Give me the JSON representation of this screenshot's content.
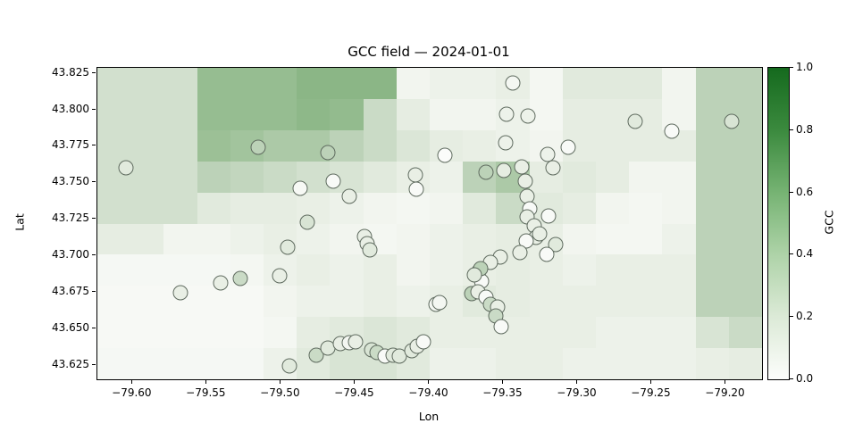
{
  "figure": {
    "title": "GCC field — 2024-01-01",
    "xlabel": "Lon",
    "ylabel": "Lat",
    "colorbar_label": "GCC",
    "background": "#ffffff"
  },
  "chart_data": {
    "type": "heatmap",
    "title": "GCC field — 2024-01-01",
    "xlabel": "Lon",
    "ylabel": "Lat",
    "xlim": [
      -79.6237,
      -79.1756
    ],
    "ylim": [
      43.6151,
      43.8285
    ],
    "grid_on": false,
    "x_ticks": [
      {
        "v": -79.6,
        "label": "−79.60"
      },
      {
        "v": -79.55,
        "label": "−79.55"
      },
      {
        "v": -79.5,
        "label": "−79.50"
      },
      {
        "v": -79.45,
        "label": "−79.45"
      },
      {
        "v": -79.4,
        "label": "−79.40"
      },
      {
        "v": -79.35,
        "label": "−79.35"
      },
      {
        "v": -79.3,
        "label": "−79.30"
      },
      {
        "v": -79.25,
        "label": "−79.25"
      },
      {
        "v": -79.2,
        "label": "−79.20"
      }
    ],
    "y_ticks": [
      {
        "v": 43.825,
        "label": "43.825"
      },
      {
        "v": 43.8,
        "label": "43.800"
      },
      {
        "v": 43.775,
        "label": "43.775"
      },
      {
        "v": 43.75,
        "label": "43.750"
      },
      {
        "v": 43.725,
        "label": "43.725"
      },
      {
        "v": 43.7,
        "label": "43.700"
      },
      {
        "v": 43.675,
        "label": "43.675"
      },
      {
        "v": 43.65,
        "label": "43.650"
      },
      {
        "v": 43.625,
        "label": "43.625"
      }
    ],
    "colorbar": {
      "label": "GCC",
      "vmin": 0.0,
      "vmax": 1.0,
      "ticks": [
        {
          "v": 0.0,
          "label": "0.0"
        },
        {
          "v": 0.2,
          "label": "0.2"
        },
        {
          "v": 0.4,
          "label": "0.4"
        },
        {
          "v": 0.6,
          "label": "0.6"
        },
        {
          "v": 0.8,
          "label": "0.8"
        },
        {
          "v": 1.0,
          "label": "1.0"
        }
      ],
      "cmap_name": "Greens",
      "gradient_stops": [
        [
          0.0,
          "#fcfdfb"
        ],
        [
          0.2,
          "#dcead7"
        ],
        [
          0.4,
          "#aed3a8"
        ],
        [
          0.6,
          "#76b373"
        ],
        [
          0.8,
          "#3b8a3e"
        ],
        [
          1.0,
          "#156a1e"
        ]
      ]
    },
    "heatmap": {
      "nx": 20,
      "ny": 10,
      "cmap_stops": [
        [
          0.0,
          "#fbfcfa"
        ],
        [
          0.05,
          "#f4f7f2"
        ],
        [
          0.1,
          "#e9efe5"
        ],
        [
          0.2,
          "#d8e4d4"
        ],
        [
          0.3,
          "#bcd2b8"
        ],
        [
          0.4,
          "#9cc096"
        ],
        [
          0.5,
          "#7fb07c"
        ],
        [
          0.75,
          "#3d8549"
        ],
        [
          1.0,
          "#11542a"
        ]
      ],
      "values": [
        [
          0.22,
          0.22,
          0.22,
          0.42,
          0.42,
          0.42,
          0.46,
          0.46,
          0.46,
          0.06,
          0.08,
          0.08,
          0.1,
          0.05,
          0.15,
          0.15,
          0.15,
          0.06,
          0.3,
          0.3
        ],
        [
          0.22,
          0.22,
          0.22,
          0.42,
          0.42,
          0.42,
          0.45,
          0.43,
          0.25,
          0.12,
          0.06,
          0.06,
          0.08,
          0.05,
          0.12,
          0.12,
          0.12,
          0.06,
          0.3,
          0.3
        ],
        [
          0.22,
          0.22,
          0.22,
          0.4,
          0.38,
          0.35,
          0.35,
          0.3,
          0.25,
          0.18,
          0.12,
          0.1,
          0.08,
          0.06,
          0.12,
          0.12,
          0.12,
          0.12,
          0.3,
          0.3
        ],
        [
          0.22,
          0.22,
          0.22,
          0.3,
          0.28,
          0.25,
          0.22,
          0.2,
          0.15,
          0.1,
          0.08,
          0.3,
          0.35,
          0.12,
          0.15,
          0.12,
          0.06,
          0.06,
          0.3,
          0.3
        ],
        [
          0.22,
          0.22,
          0.22,
          0.15,
          0.12,
          0.12,
          0.1,
          0.08,
          0.06,
          0.05,
          0.06,
          0.15,
          0.25,
          0.15,
          0.12,
          0.06,
          0.05,
          0.06,
          0.3,
          0.3
        ],
        [
          0.12,
          0.12,
          0.06,
          0.06,
          0.08,
          0.1,
          0.08,
          0.06,
          0.05,
          0.06,
          0.08,
          0.1,
          0.12,
          0.1,
          0.06,
          0.05,
          0.05,
          0.08,
          0.3,
          0.3
        ],
        [
          0.04,
          0.04,
          0.04,
          0.04,
          0.05,
          0.08,
          0.1,
          0.08,
          0.1,
          0.06,
          0.08,
          0.1,
          0.12,
          0.1,
          0.08,
          0.1,
          0.1,
          0.1,
          0.3,
          0.3
        ],
        [
          0.03,
          0.03,
          0.03,
          0.03,
          0.03,
          0.06,
          0.08,
          0.08,
          0.1,
          0.08,
          0.1,
          0.15,
          0.12,
          0.1,
          0.1,
          0.1,
          0.1,
          0.1,
          0.3,
          0.3
        ],
        [
          0.03,
          0.03,
          0.03,
          0.03,
          0.03,
          0.05,
          0.12,
          0.15,
          0.18,
          0.15,
          0.1,
          0.1,
          0.1,
          0.1,
          0.1,
          0.08,
          0.08,
          0.08,
          0.2,
          0.25
        ],
        [
          0.04,
          0.04,
          0.04,
          0.04,
          0.04,
          0.08,
          0.15,
          0.2,
          0.2,
          0.15,
          0.08,
          0.08,
          0.1,
          0.1,
          0.08,
          0.08,
          0.08,
          0.08,
          0.1,
          0.12
        ]
      ]
    },
    "scatter": {
      "name": "observations",
      "marker": "circle",
      "edge_color": "#5f6b5f",
      "points": [
        {
          "lon": -79.6044,
          "lat": 43.76,
          "gcc": 0.15
        },
        {
          "lon": -79.5152,
          "lat": 43.7741,
          "gcc": 0.3
        },
        {
          "lon": -79.4683,
          "lat": 43.7704,
          "gcc": 0.3
        },
        {
          "lon": -79.3435,
          "lat": 43.8181,
          "gcc": 0.05
        },
        {
          "lon": -79.3478,
          "lat": 43.7967,
          "gcc": 0.08
        },
        {
          "lon": -79.3333,
          "lat": 43.7955,
          "gcc": 0.08
        },
        {
          "lon": -79.3484,
          "lat": 43.7771,
          "gcc": 0.08
        },
        {
          "lon": -79.3893,
          "lat": 43.7686,
          "gcc": 0.0
        },
        {
          "lon": -79.3201,
          "lat": 43.7692,
          "gcc": 0.08
        },
        {
          "lon": -79.3062,
          "lat": 43.7741,
          "gcc": 0.02
        },
        {
          "lon": -79.3164,
          "lat": 43.76,
          "gcc": 0.1
        },
        {
          "lon": -79.261,
          "lat": 43.7918,
          "gcc": 0.15
        },
        {
          "lon": -79.2363,
          "lat": 43.7851,
          "gcc": 0.02
        },
        {
          "lon": -79.196,
          "lat": 43.7918,
          "gcc": 0.2
        },
        {
          "lon": -79.3616,
          "lat": 43.757,
          "gcc": 0.3
        },
        {
          "lon": -79.3496,
          "lat": 43.7582,
          "gcc": 0.12
        },
        {
          "lon": -79.3375,
          "lat": 43.7606,
          "gcc": 0.1
        },
        {
          "lon": -79.3351,
          "lat": 43.7508,
          "gcc": 0.1
        },
        {
          "lon": -79.4092,
          "lat": 43.7551,
          "gcc": 0.1
        },
        {
          "lon": -79.4086,
          "lat": 43.7453,
          "gcc": 0.02
        },
        {
          "lon": -79.4646,
          "lat": 43.7508,
          "gcc": 0.02
        },
        {
          "lon": -79.4538,
          "lat": 43.7404,
          "gcc": 0.1
        },
        {
          "lon": -79.4869,
          "lat": 43.746,
          "gcc": 0.03
        },
        {
          "lon": -79.4821,
          "lat": 43.7227,
          "gcc": 0.2
        },
        {
          "lon": -79.4954,
          "lat": 43.7056,
          "gcc": 0.15
        },
        {
          "lon": -79.5008,
          "lat": 43.686,
          "gcc": 0.1
        },
        {
          "lon": -79.5273,
          "lat": 43.6842,
          "gcc": 0.25
        },
        {
          "lon": -79.5406,
          "lat": 43.6811,
          "gcc": 0.1
        },
        {
          "lon": -79.5677,
          "lat": 43.6744,
          "gcc": 0.1
        },
        {
          "lon": -79.4942,
          "lat": 43.6243,
          "gcc": 0.15
        },
        {
          "lon": -79.4761,
          "lat": 43.6316,
          "gcc": 0.25
        },
        {
          "lon": -79.4683,
          "lat": 43.6365,
          "gcc": 0.15
        },
        {
          "lon": -79.4598,
          "lat": 43.6396,
          "gcc": 0.1
        },
        {
          "lon": -79.4538,
          "lat": 43.6402,
          "gcc": 0.05
        },
        {
          "lon": -79.4496,
          "lat": 43.6408,
          "gcc": 0.1
        },
        {
          "lon": -79.4388,
          "lat": 43.6353,
          "gcc": 0.2
        },
        {
          "lon": -79.4352,
          "lat": 43.6334,
          "gcc": 0.25
        },
        {
          "lon": -79.4297,
          "lat": 43.631,
          "gcc": 0.02
        },
        {
          "lon": -79.4243,
          "lat": 43.6316,
          "gcc": 0.15
        },
        {
          "lon": -79.4201,
          "lat": 43.631,
          "gcc": 0.15
        },
        {
          "lon": -79.4117,
          "lat": 43.6347,
          "gcc": 0.15
        },
        {
          "lon": -79.4081,
          "lat": 43.6377,
          "gcc": 0.1
        },
        {
          "lon": -79.4039,
          "lat": 43.6408,
          "gcc": 0.02
        },
        {
          "lon": -79.3954,
          "lat": 43.6665,
          "gcc": 0.05
        },
        {
          "lon": -79.393,
          "lat": 43.6677,
          "gcc": 0.05
        },
        {
          "lon": -79.3665,
          "lat": 43.6891,
          "gcc": 0.25
        },
        {
          "lon": -79.3647,
          "lat": 43.6824,
          "gcc": 0.02
        },
        {
          "lon": -79.3713,
          "lat": 43.6738,
          "gcc": 0.3
        },
        {
          "lon": -79.3671,
          "lat": 43.675,
          "gcc": 0.1
        },
        {
          "lon": -79.3617,
          "lat": 43.6713,
          "gcc": 0.02
        },
        {
          "lon": -79.3585,
          "lat": 43.6665,
          "gcc": 0.25
        },
        {
          "lon": -79.3537,
          "lat": 43.6646,
          "gcc": 0.1
        },
        {
          "lon": -79.3549,
          "lat": 43.6585,
          "gcc": 0.25
        },
        {
          "lon": -79.3513,
          "lat": 43.6512,
          "gcc": 0.02
        },
        {
          "lon": -79.3339,
          "lat": 43.7404,
          "gcc": 0.1
        },
        {
          "lon": -79.3321,
          "lat": 43.7319,
          "gcc": 0.02
        },
        {
          "lon": -79.3339,
          "lat": 43.7264,
          "gcc": 0.1
        },
        {
          "lon": -79.3291,
          "lat": 43.7203,
          "gcc": 0.1
        },
        {
          "lon": -79.3279,
          "lat": 43.7123,
          "gcc": 0.1
        },
        {
          "lon": -79.3345,
          "lat": 43.7099,
          "gcc": 0.02
        },
        {
          "lon": -79.3387,
          "lat": 43.7019,
          "gcc": 0.1
        },
        {
          "lon": -79.3519,
          "lat": 43.6989,
          "gcc": 0.1
        },
        {
          "lon": -79.3585,
          "lat": 43.6952,
          "gcc": 0.1
        },
        {
          "lon": -79.3652,
          "lat": 43.6909,
          "gcc": 0.3
        },
        {
          "lon": -79.3694,
          "lat": 43.6866,
          "gcc": 0.15
        },
        {
          "lon": -79.3195,
          "lat": 43.727,
          "gcc": 0.02
        },
        {
          "lon": -79.3255,
          "lat": 43.7148,
          "gcc": 0.1
        },
        {
          "lon": -79.3147,
          "lat": 43.7074,
          "gcc": 0.15
        },
        {
          "lon": -79.3207,
          "lat": 43.7007,
          "gcc": 0.02
        },
        {
          "lon": -79.4436,
          "lat": 43.7129,
          "gcc": 0.1
        },
        {
          "lon": -79.4418,
          "lat": 43.708,
          "gcc": 0.1
        },
        {
          "lon": -79.44,
          "lat": 43.7037,
          "gcc": 0.15
        }
      ]
    }
  }
}
